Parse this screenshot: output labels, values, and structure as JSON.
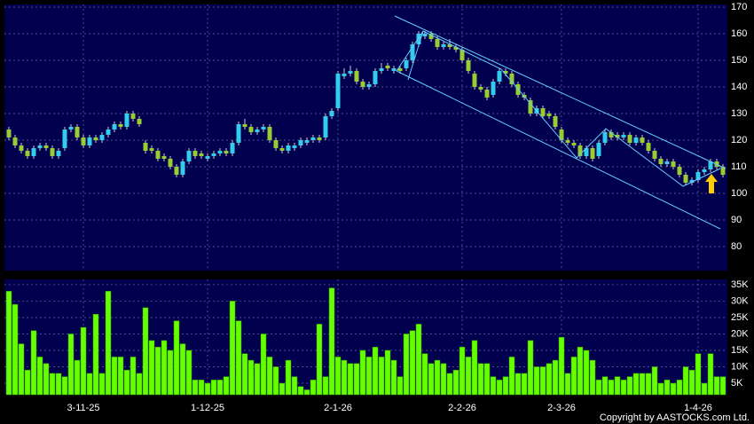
{
  "copyright": "Copyright by AASTOCKS.com Ltd.",
  "chart_data": [
    {
      "type": "candlestick",
      "up_color": "#33ccee",
      "down_color": "#99cc33",
      "grid": true,
      "ylim": [
        71,
        171
      ],
      "yticks": [
        80,
        90,
        100,
        110,
        120,
        130,
        140,
        150,
        160,
        170
      ],
      "open": [
        124,
        121,
        118,
        116,
        114,
        117,
        118,
        117,
        114,
        117,
        124,
        125,
        121,
        118,
        121,
        120,
        122,
        124,
        126,
        125,
        130,
        128,
        119,
        117,
        116,
        114,
        113,
        110,
        107,
        112,
        116,
        115,
        113,
        114,
        115,
        116,
        115,
        119,
        126,
        125,
        123,
        124,
        125,
        120,
        117,
        116,
        117,
        118,
        119,
        120,
        121,
        121,
        129,
        132,
        144,
        145,
        146,
        142,
        140,
        141,
        146,
        148,
        146,
        147,
        147,
        150,
        156,
        159,
        160,
        158,
        155,
        156,
        155,
        154,
        150,
        145,
        140,
        139,
        137,
        142,
        146,
        145,
        141,
        137,
        135,
        130,
        132,
        130,
        129,
        124,
        120,
        119,
        118,
        114,
        117,
        114,
        119,
        123,
        122,
        121,
        122,
        119,
        121,
        119,
        116,
        113,
        111,
        112,
        110,
        107,
        104,
        105,
        108,
        109,
        112,
        110
      ],
      "high": [
        125,
        122,
        119,
        117,
        118,
        119,
        119,
        118,
        117,
        125,
        126,
        126,
        122,
        122,
        122,
        123,
        125,
        127,
        127,
        131,
        131,
        129,
        120,
        118,
        117,
        115,
        114,
        111,
        113,
        117,
        117,
        116,
        115,
        116,
        117,
        117,
        120,
        127,
        128,
        126,
        125,
        126,
        126,
        121,
        118,
        119,
        119,
        121,
        121,
        122,
        122,
        130,
        132,
        146,
        147,
        148,
        147,
        143,
        142,
        147,
        149,
        149,
        148,
        148,
        151,
        157,
        161,
        161,
        161,
        159,
        157,
        158,
        156,
        155,
        151,
        146,
        141,
        140,
        143,
        147,
        147,
        146,
        142,
        138,
        136,
        133,
        133,
        131,
        130,
        125,
        121,
        120,
        119,
        118,
        118,
        120,
        124,
        124,
        123,
        123,
        123,
        122,
        122,
        120,
        117,
        114,
        113,
        113,
        111,
        108,
        106,
        109,
        110,
        113,
        113,
        111
      ],
      "low": [
        120,
        117,
        115,
        113,
        113,
        116,
        116,
        113,
        113,
        116,
        123,
        120,
        117,
        117,
        119,
        119,
        121,
        123,
        124,
        124,
        127,
        125,
        115,
        115,
        112,
        112,
        109,
        106,
        106,
        111,
        113,
        113,
        112,
        113,
        114,
        114,
        114,
        118,
        124,
        122,
        122,
        123,
        119,
        116,
        115,
        115,
        116,
        117,
        118,
        119,
        119,
        120,
        128,
        131,
        143,
        144,
        141,
        139,
        139,
        140,
        145,
        146,
        145,
        145,
        146,
        149,
        155,
        158,
        157,
        154,
        154,
        154,
        153,
        149,
        145,
        139,
        138,
        135,
        136,
        141,
        144,
        140,
        136,
        135,
        129,
        129,
        128,
        128,
        124,
        119,
        118,
        117,
        113,
        113,
        112,
        113,
        118,
        120,
        120,
        120,
        118,
        118,
        118,
        115,
        112,
        110,
        110,
        109,
        106,
        103,
        103,
        104,
        107,
        108,
        109,
        106
      ],
      "close": [
        121,
        118,
        116,
        114,
        117,
        118,
        117,
        114,
        116,
        124,
        125,
        121,
        118,
        121,
        120,
        122,
        124,
        126,
        125,
        130,
        128,
        126,
        116,
        116,
        113,
        113,
        110,
        107,
        112,
        116,
        114,
        114,
        114,
        115,
        116,
        115,
        119,
        126,
        125,
        123,
        124,
        125,
        120,
        117,
        116,
        118,
        118,
        120,
        120,
        121,
        120,
        129,
        131,
        145,
        145,
        146,
        142,
        140,
        141,
        146,
        147,
        147,
        147,
        146,
        150,
        156,
        160,
        160,
        158,
        155,
        156,
        155,
        154,
        150,
        146,
        140,
        139,
        136,
        142,
        146,
        145,
        141,
        137,
        136,
        130,
        132,
        129,
        129,
        125,
        120,
        119,
        118,
        114,
        117,
        113,
        119,
        123,
        121,
        121,
        122,
        119,
        121,
        119,
        116,
        113,
        111,
        112,
        110,
        107,
        104,
        105,
        108,
        109,
        112,
        110,
        107
      ]
    },
    {
      "type": "bar",
      "color": "#66ff00",
      "grid": true,
      "ylim": [
        1500,
        36600
      ],
      "yticks": [
        {
          "value": 5000,
          "label": "5K"
        },
        {
          "value": 10000,
          "label": "10K"
        },
        {
          "value": 15000,
          "label": "15K"
        },
        {
          "value": 20000,
          "label": "20K"
        },
        {
          "value": 25000,
          "label": "25K"
        },
        {
          "value": 30000,
          "label": "30K"
        },
        {
          "value": 35000,
          "label": "35K"
        }
      ],
      "categories": [
        null,
        null,
        null,
        null,
        null,
        null,
        null,
        null,
        null,
        null,
        null,
        null,
        "3-11-25",
        null,
        null,
        null,
        null,
        null,
        null,
        null,
        null,
        null,
        null,
        null,
        null,
        null,
        null,
        null,
        null,
        null,
        null,
        null,
        "1-12-25",
        null,
        null,
        null,
        null,
        null,
        null,
        null,
        null,
        null,
        null,
        null,
        null,
        null,
        null,
        null,
        null,
        null,
        null,
        null,
        null,
        "2-1-26",
        null,
        null,
        null,
        null,
        null,
        null,
        null,
        null,
        null,
        null,
        null,
        null,
        null,
        null,
        null,
        null,
        null,
        null,
        null,
        "2-2-26",
        null,
        null,
        null,
        null,
        null,
        null,
        null,
        null,
        null,
        null,
        null,
        null,
        null,
        null,
        null,
        "2-3-26",
        null,
        null,
        null,
        null,
        null,
        null,
        null,
        null,
        null,
        null,
        null,
        null,
        null,
        null,
        null,
        null,
        null,
        null,
        null,
        null,
        null,
        "1-4-26",
        null,
        null,
        null,
        null
      ],
      "values": [
        33000,
        29000,
        17000,
        9000,
        21000,
        13000,
        11000,
        8000,
        8000,
        7000,
        20000,
        12000,
        22000,
        8000,
        26000,
        8000,
        33000,
        13000,
        13000,
        9000,
        13000,
        8000,
        28000,
        18000,
        16000,
        18000,
        15000,
        24000,
        17000,
        15000,
        6000,
        6000,
        5000,
        6000,
        6000,
        7000,
        30000,
        24000,
        14000,
        12000,
        11000,
        20000,
        13000,
        10000,
        5000,
        12000,
        7000,
        4000,
        3000,
        6000,
        23000,
        7000,
        34000,
        13000,
        12000,
        11000,
        11000,
        15000,
        13000,
        16000,
        13000,
        15000,
        12000,
        7000,
        20000,
        21000,
        23000,
        14000,
        11000,
        12000,
        11000,
        8000,
        9000,
        16000,
        13000,
        18000,
        11000,
        11000,
        7000,
        6000,
        7000,
        13000,
        8000,
        8000,
        18000,
        10000,
        10000,
        11000,
        12000,
        19000,
        8000,
        13000,
        16000,
        15000,
        12000,
        6000,
        7000,
        6000,
        7000,
        6000,
        7000,
        8000,
        8000,
        8000,
        10000,
        5000,
        6000,
        5000,
        6000,
        10000,
        9000,
        14000,
        5000,
        14000,
        7000,
        7000
      ]
    }
  ]
}
